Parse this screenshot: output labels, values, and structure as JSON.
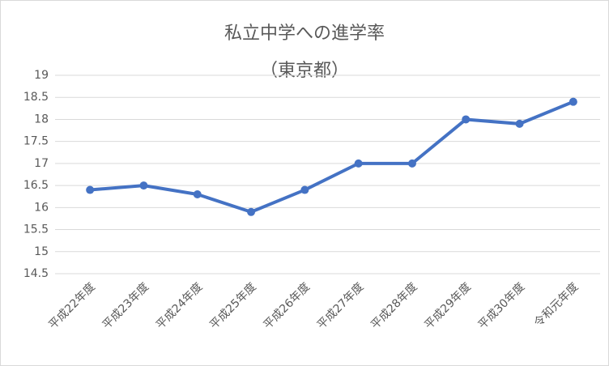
{
  "chart_data": {
    "type": "line",
    "title": "私立中学への進学率",
    "subtitle": "（東京都）",
    "categories": [
      "平成22年度",
      "平成23年度",
      "平成24年度",
      "平成25年度",
      "平成26年度",
      "平成27年度",
      "平成28年度",
      "平成29年度",
      "平成30年度",
      "令和元年度"
    ],
    "values": [
      16.4,
      16.5,
      16.3,
      15.9,
      16.4,
      17,
      17,
      18,
      17.9,
      18.4
    ],
    "color": "#4472c4",
    "ylim": [
      14.5,
      19
    ],
    "yticks": [
      14.5,
      15,
      15.5,
      16,
      16.5,
      17,
      17.5,
      18,
      18.5,
      19
    ],
    "grid": true
  }
}
